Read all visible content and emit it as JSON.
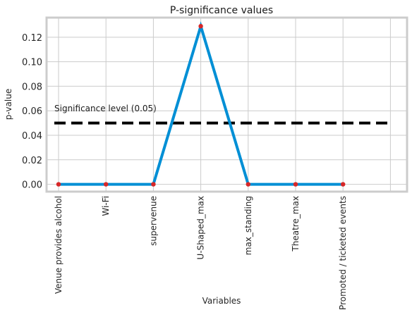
{
  "chart_data": {
    "type": "line",
    "title": "P-significance values",
    "xlabel": "Variables",
    "ylabel": "p-value",
    "categories": [
      "Venue provides alcohol",
      "Wi-Fi",
      "supervenue",
      "U-Shaped_max",
      "max_standing",
      "Theatre_max",
      "Promoted / ticketed events"
    ],
    "values": [
      0.0,
      0.0,
      0.0,
      0.129,
      0.0,
      0.0,
      0.0
    ],
    "ylim": [
      -0.006,
      0.136
    ],
    "yticks": [
      "0.00",
      "0.02",
      "0.04",
      "0.06",
      "0.08",
      "0.10",
      "0.12"
    ],
    "ytick_values": [
      0.0,
      0.02,
      0.04,
      0.06,
      0.08,
      0.1,
      0.12
    ],
    "grid": true,
    "line_color": "#008fd5",
    "marker_color": "#d62728",
    "threshold": {
      "value": 0.05,
      "label": "Significance level (0.05)",
      "color": "#000000",
      "style": "dashed"
    }
  }
}
